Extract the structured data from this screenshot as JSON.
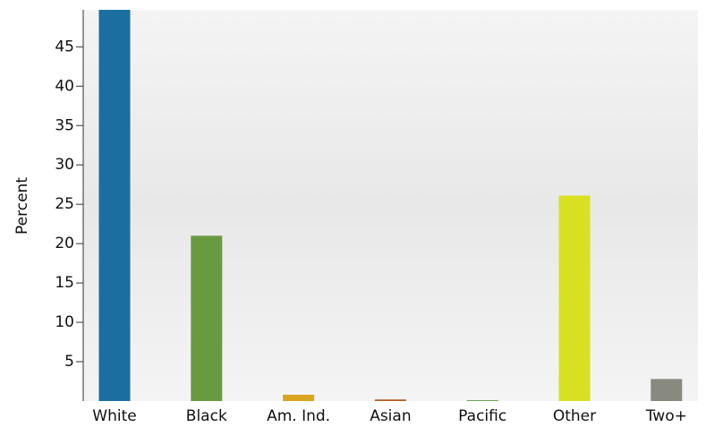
{
  "chart_data": {
    "type": "bar",
    "y_label": "Percent",
    "categories": [
      "White",
      "Black",
      "Am. Ind.",
      "Asian",
      "Pacific",
      "Other",
      "Two+"
    ],
    "values": [
      52,
      21,
      0.8,
      0.2,
      0.1,
      26.1,
      2.8
    ],
    "colors": [
      "#1a6fa0",
      "#6a9a40",
      "#d9a520",
      "#b85a20",
      "#5a9a40",
      "#d9e021",
      "#888a80"
    ],
    "ylim": [
      0,
      49.7
    ],
    "yticks": [
      5,
      10,
      15,
      20,
      25,
      30,
      35,
      40,
      45
    ],
    "grid": false
  }
}
